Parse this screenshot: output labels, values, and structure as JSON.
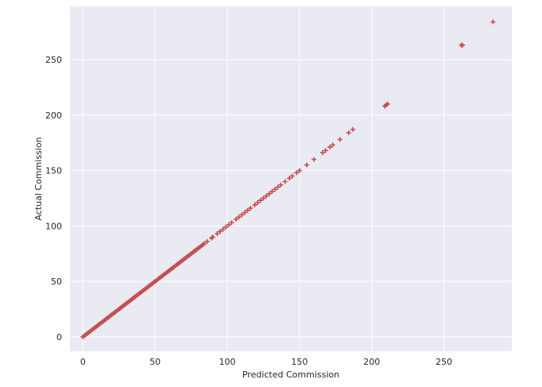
{
  "chart_data": {
    "type": "scatter",
    "title": "",
    "xlabel": "Predicted Commission",
    "ylabel": "Actual Commission",
    "xlim": [
      -9,
      297
    ],
    "ylim": [
      -13,
      298
    ],
    "xticks": [
      0,
      50,
      100,
      150,
      200,
      250
    ],
    "yticks": [
      0,
      50,
      100,
      150,
      200,
      250
    ],
    "grid": true,
    "background": "#eaeaf2",
    "marker": "+",
    "marker_color": "#c44e52",
    "series": [
      {
        "points": [
          [
            0,
            0
          ],
          [
            1,
            1
          ],
          [
            2,
            2
          ],
          [
            3,
            3
          ],
          [
            4,
            4
          ],
          [
            5,
            5
          ],
          [
            6,
            6
          ],
          [
            7,
            7
          ],
          [
            8,
            8
          ],
          [
            9,
            9
          ],
          [
            10,
            10
          ],
          [
            11,
            11
          ],
          [
            12,
            12
          ],
          [
            13,
            13
          ],
          [
            14,
            14
          ],
          [
            15,
            15
          ],
          [
            16,
            16
          ],
          [
            17,
            17
          ],
          [
            18,
            18
          ],
          [
            19,
            19
          ],
          [
            20,
            20
          ],
          [
            21,
            21
          ],
          [
            22,
            22
          ],
          [
            23,
            23
          ],
          [
            24,
            24
          ],
          [
            25,
            25
          ],
          [
            26,
            26
          ],
          [
            27,
            27
          ],
          [
            28,
            28
          ],
          [
            29,
            29
          ],
          [
            30,
            30
          ],
          [
            31,
            31
          ],
          [
            32,
            32
          ],
          [
            33,
            33
          ],
          [
            34,
            34
          ],
          [
            35,
            35
          ],
          [
            36,
            36
          ],
          [
            37,
            37
          ],
          [
            38,
            38
          ],
          [
            39,
            39
          ],
          [
            40,
            40
          ],
          [
            41,
            41
          ],
          [
            42,
            42
          ],
          [
            43,
            43
          ],
          [
            44,
            44
          ],
          [
            45,
            45
          ],
          [
            46,
            46
          ],
          [
            47,
            47
          ],
          [
            48,
            48
          ],
          [
            49,
            49
          ],
          [
            50,
            50
          ],
          [
            51,
            51
          ],
          [
            52,
            52
          ],
          [
            53,
            53
          ],
          [
            54,
            54
          ],
          [
            55,
            55
          ],
          [
            56,
            56
          ],
          [
            57,
            57
          ],
          [
            58,
            58
          ],
          [
            59,
            59
          ],
          [
            60,
            60
          ],
          [
            61,
            61
          ],
          [
            62,
            62
          ],
          [
            63,
            63
          ],
          [
            64,
            64
          ],
          [
            65,
            65
          ],
          [
            66,
            66
          ],
          [
            67,
            67
          ],
          [
            68,
            68
          ],
          [
            69,
            69
          ],
          [
            70,
            70
          ],
          [
            71,
            71
          ],
          [
            72,
            72
          ],
          [
            73,
            73
          ],
          [
            74,
            74
          ],
          [
            75,
            75
          ],
          [
            76,
            76
          ],
          [
            77,
            77
          ],
          [
            78,
            78
          ],
          [
            79,
            79
          ],
          [
            80,
            80
          ],
          [
            81,
            81
          ],
          [
            82,
            82
          ],
          [
            83,
            83
          ],
          [
            84,
            84
          ],
          [
            86,
            86
          ],
          [
            89,
            89
          ],
          [
            90,
            90
          ],
          [
            93,
            93
          ],
          [
            95,
            95
          ],
          [
            97,
            97
          ],
          [
            99,
            99
          ],
          [
            101,
            101
          ],
          [
            103,
            103
          ],
          [
            106,
            106
          ],
          [
            108,
            108
          ],
          [
            110,
            110
          ],
          [
            112,
            112
          ],
          [
            114,
            114
          ],
          [
            116,
            116
          ],
          [
            119,
            119
          ],
          [
            121,
            121
          ],
          [
            123,
            123
          ],
          [
            125,
            125
          ],
          [
            127,
            127
          ],
          [
            129,
            129
          ],
          [
            131,
            131
          ],
          [
            133,
            133
          ],
          [
            135,
            135
          ],
          [
            137,
            137
          ],
          [
            140,
            140
          ],
          [
            143,
            143
          ],
          [
            145,
            145
          ],
          [
            148,
            148
          ],
          [
            150,
            150
          ],
          [
            155,
            155
          ],
          [
            160,
            160
          ],
          [
            166,
            166
          ],
          [
            168,
            168
          ],
          [
            171,
            171
          ],
          [
            173,
            173
          ],
          [
            178,
            178
          ],
          [
            184,
            184
          ],
          [
            187,
            187
          ],
          [
            209,
            208
          ],
          [
            210,
            209
          ],
          [
            211,
            210
          ],
          [
            262,
            263
          ],
          [
            263,
            263
          ],
          [
            284,
            284
          ]
        ]
      }
    ]
  }
}
